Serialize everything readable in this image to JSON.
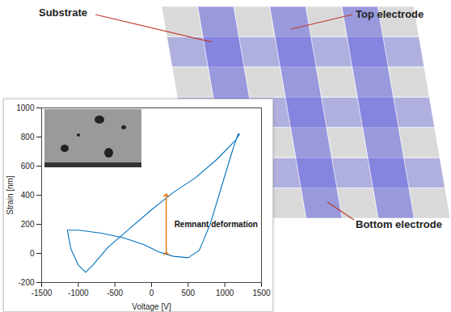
{
  "chart_data": {
    "type": "line",
    "xlabel": "Voltage [V]",
    "ylabel": "Strain [nm]",
    "x": [
      -1150,
      -1000,
      -700,
      -400,
      -100,
      100,
      300,
      500,
      650,
      800,
      950,
      1100,
      1180,
      1200,
      1150,
      900,
      600,
      300,
      0,
      -300,
      -600,
      -800,
      -900,
      -1000,
      -1100,
      -1150
    ],
    "values": [
      160,
      160,
      140,
      110,
      60,
      10,
      -20,
      -30,
      20,
      200,
      450,
      700,
      820,
      820,
      780,
      650,
      520,
      420,
      300,
      170,
      40,
      -80,
      -130,
      -80,
      30,
      160
    ],
    "color": "#0072bd",
    "xlim": [
      -1500,
      1500
    ],
    "xticks": [
      -1500,
      -1000,
      -500,
      0,
      500,
      1000,
      1500
    ],
    "ylim": [
      -200,
      1000
    ],
    "yticks": [
      -200,
      0,
      200,
      400,
      600,
      800,
      1000
    ],
    "grid": false,
    "annotations": [
      {
        "text": "Remnant deformation",
        "x": 200,
        "y1": 0,
        "y2": 400,
        "color": "#e07b1a"
      }
    ]
  },
  "diagram": {
    "substrate": "Substrate",
    "top_electrode": "Top electrode",
    "bottom_electrode": "Bottom electrode"
  }
}
